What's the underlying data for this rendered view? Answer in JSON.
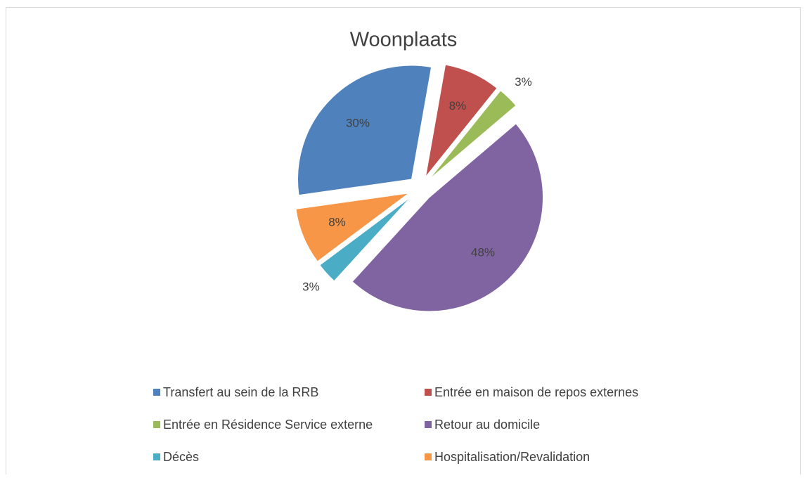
{
  "chart_data": {
    "type": "pie",
    "title": "Woonplaats",
    "categories": [
      "Transfert au sein de la RRB",
      "Entrée en maison de repos externes",
      "Entrée en Résidence Service externe",
      "Retour au domicile",
      "Décès",
      "Hospitalisation/Revalidation"
    ],
    "values": [
      30,
      8,
      3,
      48,
      3,
      8
    ],
    "value_labels": [
      "30%",
      "8%",
      "3%",
      "48%",
      "3%",
      "8%"
    ],
    "colors": [
      "#4f81bd",
      "#c0504d",
      "#9bbb59",
      "#8064a2",
      "#4bacc6",
      "#f79646"
    ],
    "legend": "bottom"
  }
}
